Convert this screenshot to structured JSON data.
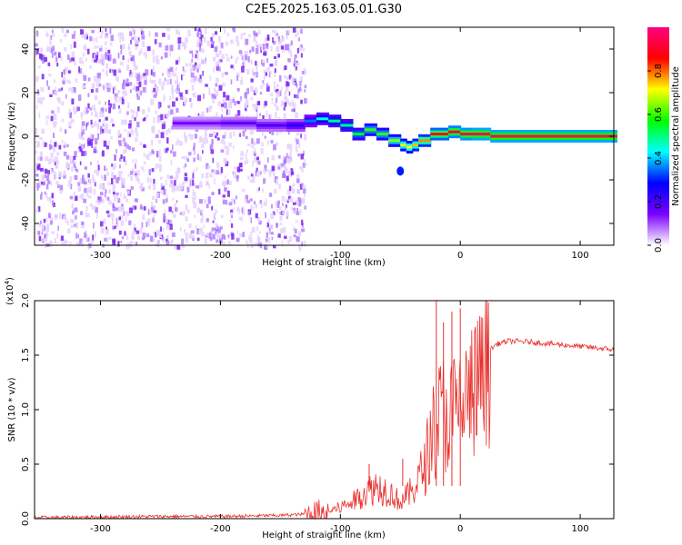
{
  "figure": {
    "title": "C2E5.2025.163.05.01.G30"
  },
  "chart_data": [
    {
      "type": "heatmap",
      "title": "C2E5.2025.163.05.01.G30",
      "xlabel": "Height of straight line (km)",
      "ylabel": "Frequency (Hz)",
      "xlim": [
        -355,
        128
      ],
      "ylim": [
        -50,
        50
      ],
      "xticks": [
        -300,
        -200,
        -100,
        0,
        100
      ],
      "yticks": [
        -40,
        -20,
        0,
        20,
        40
      ],
      "colorbar": {
        "label": "Normalized spectral amplitude",
        "range": [
          0.0,
          1.0
        ],
        "ticks": [
          "0.0",
          "0.2",
          "0.4",
          "0.6",
          "0.8"
        ],
        "colormap": [
          "#ffffff",
          "#7a00ff",
          "#0000ff",
          "#00ffff",
          "#00ff00",
          "#ffff00",
          "#ff0000",
          "#ff0080"
        ]
      },
      "noise_region": {
        "x_range": [
          -355,
          -130
        ],
        "frequency_range": [
          -50,
          50
        ],
        "amplitude": 0.1
      },
      "signal_track": {
        "x": [
          -240,
          -200,
          -170,
          -145,
          -130,
          -120,
          -110,
          -100,
          -90,
          -80,
          -70,
          -60,
          -50,
          -45,
          -40,
          -35,
          -25,
          -10,
          0,
          10,
          25,
          50,
          80,
          128
        ],
        "frequency": [
          6,
          6,
          5,
          5,
          7,
          8,
          7,
          5,
          1,
          3,
          1,
          -2,
          -4,
          -5,
          -4,
          -2,
          1,
          2,
          1,
          1,
          0,
          0,
          0,
          0
        ],
        "amplitude": [
          0.15,
          0.18,
          0.2,
          0.25,
          0.35,
          0.45,
          0.5,
          0.5,
          0.55,
          0.6,
          0.6,
          0.65,
          0.7,
          0.72,
          0.75,
          0.78,
          0.85,
          0.9,
          0.92,
          0.95,
          0.95,
          0.95,
          0.95,
          0.95
        ]
      },
      "annotations": [
        {
          "x": -50,
          "frequency": -16,
          "amplitude": 0.3
        }
      ]
    },
    {
      "type": "line",
      "xlabel": "Height of straight line (km)",
      "ylabel": "SNR (10 * v/v)",
      "y_scale_label": "(x10",
      "y_scale_exponent": "4",
      "xlim": [
        -355,
        128
      ],
      "ylim": [
        0,
        2.0
      ],
      "xticks": [
        -300,
        -200,
        -100,
        0,
        100
      ],
      "yticks": [
        "0.0",
        "0.5",
        "1.0",
        "1.5",
        "2.0"
      ],
      "series": [
        {
          "name": "SNR",
          "color": "#e8302c",
          "x": [
            -355,
            -300,
            -250,
            -200,
            -150,
            -130,
            -110,
            -100,
            -90,
            -80,
            -70,
            -60,
            -50,
            -40,
            -30,
            -25,
            -20,
            -15,
            -10,
            -5,
            0,
            10,
            20,
            30,
            40,
            60,
            80,
            100,
            128
          ],
          "y": [
            0.01,
            0.015,
            0.02,
            0.02,
            0.03,
            0.04,
            0.08,
            0.12,
            0.18,
            0.28,
            0.35,
            0.3,
            0.18,
            0.3,
            0.55,
            0.85,
            1.05,
            1.15,
            1.1,
            1.15,
            1.2,
            1.35,
            1.5,
            1.6,
            1.63,
            1.62,
            1.6,
            1.58,
            1.55
          ]
        }
      ],
      "spikes": [
        {
          "x": -20,
          "y": 2.0
        },
        {
          "x": -14,
          "y": 1.8
        },
        {
          "x": -7,
          "y": 1.9
        },
        {
          "x": 0,
          "y": 1.93
        },
        {
          "x": -48,
          "y": 0.55
        },
        {
          "x": -76,
          "y": 0.5
        }
      ]
    }
  ]
}
